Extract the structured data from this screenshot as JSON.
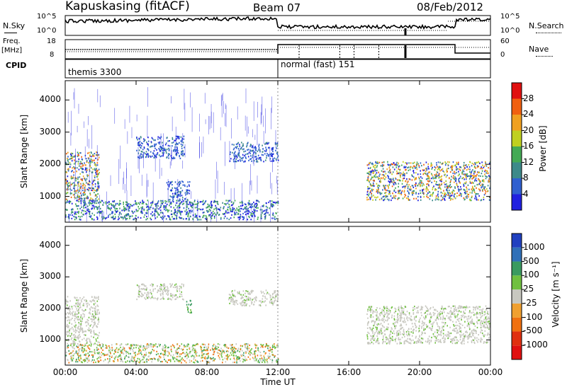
{
  "header": {
    "station": "Kapuskasing (fitACF)",
    "beam": "Beam 07",
    "date": "08/Feb/2012"
  },
  "strips": {
    "nsky_label": "N.Sky",
    "nsearch_label": "N.Search",
    "nsky_ticks": [
      "10^5",
      "10^0"
    ],
    "nsearch_ticks": [
      "10^5",
      "10^0"
    ],
    "freq_label_1": "Freq.",
    "freq_label_2": "[MHz]",
    "freq_ticks": [
      "18",
      "8"
    ],
    "nave_label": "Nave",
    "nave_ticks": [
      "60",
      "0"
    ],
    "cpid_label": "CPID",
    "cpid_segments": [
      {
        "label": "themis 3300",
        "start_hour": 0,
        "end_hour": 12
      },
      {
        "label": "normal (fast) 151",
        "start_hour": 12,
        "end_hour": 24
      }
    ]
  },
  "chart_data": [
    {
      "type": "heatmap",
      "name": "power",
      "ylabel": "Slant Range [km]",
      "yticks": [
        1000,
        2000,
        3000,
        4000
      ],
      "ylim": [
        200,
        4600
      ],
      "xlim": [
        0,
        24
      ],
      "colorbar": {
        "label": "Power [dB]",
        "ticks": [
          "28",
          "24",
          "20",
          "16",
          "12",
          "8",
          "4"
        ],
        "colors": [
          "#2020e0",
          "#3060d0",
          "#3d8a8a",
          "#44aa55",
          "#c0d020",
          "#f0a020",
          "#f06010",
          "#e01010"
        ]
      },
      "echo_regions": [
        {
          "hours": [
            0.0,
            1.9
          ],
          "range_km": [
            900,
            2400
          ],
          "level": "medium-high"
        },
        {
          "hours": [
            0.0,
            12.0
          ],
          "range_km": [
            300,
            900
          ],
          "level": "low-medium"
        },
        {
          "hours": [
            4.0,
            6.7
          ],
          "range_km": [
            2200,
            2900
          ],
          "level": "low"
        },
        {
          "hours": [
            5.7,
            7.0
          ],
          "range_km": [
            900,
            1500
          ],
          "level": "low"
        },
        {
          "hours": [
            9.2,
            12.0
          ],
          "range_km": [
            2100,
            2700
          ],
          "level": "low"
        },
        {
          "hours": [
            17.0,
            24.0
          ],
          "range_km": [
            900,
            2100
          ],
          "level": "medium-high"
        }
      ]
    },
    {
      "type": "heatmap",
      "name": "velocity",
      "ylabel": "Slant Range [km]",
      "yticks": [
        1000,
        2000,
        3000,
        4000
      ],
      "ylim": [
        200,
        4600
      ],
      "xlim": [
        0,
        24
      ],
      "xlabel": "Time UT",
      "xticks": [
        "00:00",
        "04:00",
        "08:00",
        "12:00",
        "16:00",
        "20:00",
        "00:00"
      ],
      "colorbar": {
        "label": "Velocity [m s⁻¹]",
        "ticks": [
          "1000",
          "500",
          "100",
          "25",
          "-25",
          "-100",
          "-500",
          "-1000"
        ],
        "colors": [
          "#2040c0",
          "#3070b8",
          "#3a9a60",
          "#70c040",
          "#c8c8c0",
          "#f0a030",
          "#f07010",
          "#e03010",
          "#e01010"
        ]
      },
      "echo_regions": [
        {
          "hours": [
            0.0,
            1.9
          ],
          "range_km": [
            900,
            2400
          ],
          "velocity": "ground-scatter"
        },
        {
          "hours": [
            4.0,
            6.7
          ],
          "range_km": [
            2300,
            2800
          ],
          "velocity": "ground-scatter"
        },
        {
          "hours": [
            6.8,
            7.1
          ],
          "range_km": [
            1800,
            2300
          ],
          "velocity": "positive"
        },
        {
          "hours": [
            9.2,
            12.0
          ],
          "range_km": [
            2100,
            2600
          ],
          "velocity": "ground-scatter"
        },
        {
          "hours": [
            0.0,
            12.0
          ],
          "range_km": [
            300,
            900
          ],
          "velocity": "mixed"
        },
        {
          "hours": [
            17.0,
            24.0
          ],
          "range_km": [
            900,
            2100
          ],
          "velocity": "ground-scatter"
        }
      ]
    }
  ]
}
